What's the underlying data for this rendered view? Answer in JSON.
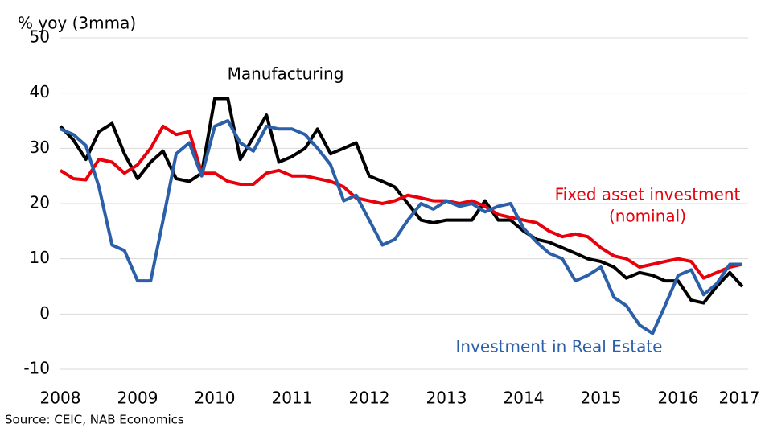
{
  "chart_data": {
    "type": "line",
    "y_axis_label": "% yoy (3mma)",
    "source": "Source: CEIC, NAB Economics",
    "annotations": [
      "Manufacturing",
      "Fixed asset investment",
      "(nominal)",
      "Investment in Real Estate"
    ],
    "x": [
      2008,
      2008.17,
      2008.33,
      2008.5,
      2008.67,
      2008.83,
      2009,
      2009.17,
      2009.33,
      2009.5,
      2009.67,
      2009.83,
      2010,
      2010.17,
      2010.33,
      2010.5,
      2010.67,
      2010.83,
      2011,
      2011.17,
      2011.33,
      2011.5,
      2011.67,
      2011.83,
      2012,
      2012.17,
      2012.33,
      2012.5,
      2012.67,
      2012.83,
      2013,
      2013.17,
      2013.33,
      2013.5,
      2013.67,
      2013.83,
      2014,
      2014.17,
      2014.33,
      2014.5,
      2014.67,
      2014.83,
      2015,
      2015.17,
      2015.33,
      2015.5,
      2015.67,
      2015.83,
      2016,
      2016.17,
      2016.33,
      2016.5,
      2016.67,
      2016.83
    ],
    "series": [
      {
        "name": "Manufacturing",
        "color": "#000000",
        "values": [
          34,
          31.5,
          28,
          33,
          34.5,
          29,
          24.5,
          27.5,
          29.5,
          24.5,
          24,
          25.5,
          39,
          39,
          28,
          32,
          36,
          27.5,
          28.5,
          30,
          33.5,
          29,
          30,
          31,
          25,
          24,
          23,
          20,
          17,
          16.5,
          17,
          17,
          17,
          20.5,
          17,
          17,
          15,
          13.5,
          13,
          12,
          11,
          10,
          9.5,
          8.5,
          6.5,
          7.5,
          7,
          6,
          6,
          2.5,
          2,
          5,
          7.5,
          5
        ]
      },
      {
        "name": "Fixed asset investment (nominal)",
        "color": "#e8000b",
        "values": [
          26,
          24.5,
          24.3,
          28,
          27.5,
          25.5,
          27,
          30,
          34,
          32.5,
          33,
          25.5,
          25.5,
          24,
          23.5,
          23.5,
          25.5,
          26,
          25,
          25,
          24.5,
          24,
          23,
          21,
          20.5,
          20,
          20.5,
          21.5,
          21,
          20.5,
          20.5,
          20,
          20.5,
          19.5,
          18,
          17.5,
          17,
          16.5,
          15,
          14,
          14.5,
          14,
          12,
          10.5,
          10,
          8.5,
          9,
          9.5,
          10,
          9.5,
          6.5,
          7.5,
          8.5,
          9
        ]
      },
      {
        "name": "Investment in Real Estate",
        "color": "#2b5fa8",
        "values": [
          33.5,
          32.5,
          30.5,
          23,
          12.5,
          11.5,
          6,
          6,
          17,
          29,
          31,
          25,
          34,
          35,
          31,
          29.5,
          34,
          33.5,
          33.5,
          32.5,
          30,
          27,
          20.5,
          21.5,
          17,
          12.5,
          13.5,
          17,
          20,
          19,
          20.5,
          19.5,
          20,
          18.5,
          19.5,
          20,
          15.5,
          13,
          11,
          10,
          6,
          7,
          8.5,
          3,
          1.5,
          -2,
          -3.5,
          1.5,
          7,
          8,
          3.5,
          5.5,
          9,
          9
        ]
      }
    ],
    "xlim": [
      2008,
      2017
    ],
    "xticks": [
      2008,
      2009,
      2010,
      2011,
      2012,
      2013,
      2014,
      2015,
      2016,
      2017
    ],
    "ylim": [
      -10,
      50
    ],
    "yticks": [
      -10,
      0,
      10,
      20,
      30,
      40,
      50
    ],
    "grid": true
  }
}
